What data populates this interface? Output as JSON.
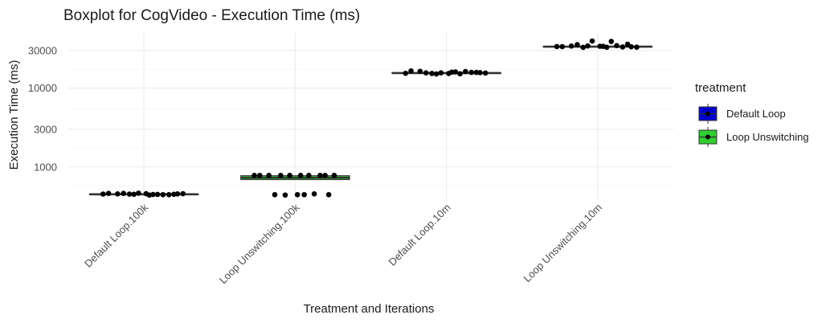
{
  "chart_data": {
    "type": "boxplot",
    "title": "Boxplot for CogVideo - Execution Time (ms)",
    "xlabel": "Treatment and Iterations",
    "ylabel": "Execution Time (ms)",
    "y_scale": "log10",
    "ylim": [
      380,
      50000
    ],
    "y_ticks": [
      1000,
      3000,
      10000,
      30000
    ],
    "y_tick_labels": [
      "1000",
      "3000",
      "10000",
      "30000"
    ],
    "categories": [
      "Default Loop.100k",
      "Loop Unswitching.100k",
      "Default Loop.10m",
      "Loop Unswitching.10m"
    ],
    "grid": true,
    "legend": {
      "title": "treatment",
      "placement": "right",
      "entries": [
        {
          "label": "Default Loop",
          "color": "#0000CD"
        },
        {
          "label": "Loop Unswitching",
          "color": "#32CD32"
        }
      ]
    },
    "boxes": [
      {
        "category": "Default Loop.100k",
        "treatment": "Default Loop",
        "median": 450,
        "q1": 445,
        "q3": 455,
        "color": "#0000CD"
      },
      {
        "category": "Loop Unswitching.100k",
        "treatment": "Loop Unswitching",
        "median": 730,
        "q1": 690,
        "q3": 775,
        "color": "#32CD32"
      },
      {
        "category": "Default Loop.10m",
        "treatment": "Default Loop",
        "median": 15500,
        "q1": 15300,
        "q3": 15700,
        "color": "#0000CD"
      },
      {
        "category": "Loop Unswitching.10m",
        "treatment": "Loop Unswitching",
        "median": 33500,
        "q1": 33100,
        "q3": 33900,
        "color": "#32CD32"
      }
    ],
    "points": [
      {
        "category": "Default Loop.100k",
        "values": [
          462,
          445,
          452,
          440,
          458,
          455,
          448,
          465,
          450,
          453,
          445,
          462,
          458,
          455,
          450,
          447
        ]
      },
      {
        "category": "Loop Unswitching.100k",
        "values": [
          780,
          780,
          780,
          780,
          780,
          780,
          780,
          780,
          780,
          780,
          455,
          445,
          445,
          445,
          440,
          445
        ]
      },
      {
        "category": "Default Loop.10m",
        "values": [
          16500,
          15800,
          15300,
          15900,
          15500,
          16300,
          15200,
          15600,
          15800,
          15400,
          16200,
          15600,
          15300,
          15700,
          15100,
          16000
        ]
      },
      {
        "category": "Loop Unswitching.10m",
        "values": [
          33500,
          33200,
          32800,
          33800,
          33000,
          34100,
          39000,
          39500,
          36000,
          33600,
          34500,
          35500,
          33900,
          33400,
          34200,
          32900
        ]
      }
    ]
  }
}
